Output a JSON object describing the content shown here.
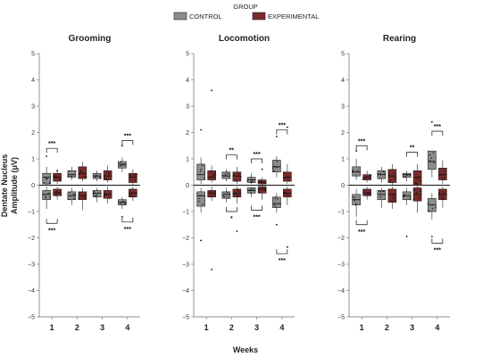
{
  "chart_data": {
    "type": "box",
    "legend": {
      "title": "GROUP",
      "placement": "top-center",
      "entries": [
        {
          "name": "CONTROL",
          "color": "#8c8c8c"
        },
        {
          "name": "EXPERIMENTAL",
          "color": "#7a2a2a"
        }
      ]
    },
    "xlabel": "Weeks",
    "ylabel_line1": "Dentate Nucleus",
    "ylabel_line2": "Amplitude (μV)",
    "ylim": [
      -5,
      5
    ],
    "yticks": [
      "5",
      "4",
      "3",
      "2",
      "1",
      "0",
      "−1",
      "−2",
      "−3",
      "−4",
      "−5"
    ],
    "ytick_values": [
      5,
      4,
      3,
      2,
      1,
      0,
      -1,
      -2,
      -3,
      -4,
      -5
    ],
    "categories": [
      "1",
      "2",
      "3",
      "4"
    ],
    "panels": [
      {
        "title": "Grooming",
        "pos": [
          [
            {
              "q1": 0.05,
              "med": 0.3,
              "q3": 0.45,
              "wl": 0.0,
              "wh": 0.7
            },
            {
              "q1": 0.15,
              "med": 0.3,
              "q3": 0.45,
              "wl": 0.05,
              "wh": 0.6
            }
          ],
          [
            {
              "q1": 0.3,
              "med": 0.4,
              "q3": 0.55,
              "wl": 0.2,
              "wh": 0.7
            },
            {
              "q1": 0.25,
              "med": 0.45,
              "q3": 0.7,
              "wl": 0.15,
              "wh": 0.9
            }
          ],
          [
            {
              "q1": 0.25,
              "med": 0.35,
              "q3": 0.45,
              "wl": 0.15,
              "wh": 0.55
            },
            {
              "q1": 0.2,
              "med": 0.35,
              "q3": 0.55,
              "wl": 0.1,
              "wh": 0.75
            }
          ],
          [
            {
              "q1": 0.65,
              "med": 0.8,
              "q3": 0.9,
              "wl": 0.5,
              "wh": 1.05
            },
            {
              "q1": 0.1,
              "med": 0.3,
              "q3": 0.45,
              "wl": 0.0,
              "wh": 0.6
            }
          ]
        ],
        "neg": [
          [
            {
              "q1": -0.55,
              "med": -0.35,
              "q3": -0.2,
              "wl": -0.9,
              "wh": -0.05
            },
            {
              "q1": -0.4,
              "med": -0.3,
              "q3": -0.15,
              "wl": -0.55,
              "wh": -0.05
            }
          ],
          [
            {
              "q1": -0.55,
              "med": -0.4,
              "q3": -0.25,
              "wl": -0.75,
              "wh": -0.1
            },
            {
              "q1": -0.55,
              "med": -0.4,
              "q3": -0.25,
              "wl": -0.95,
              "wh": -0.1
            }
          ],
          [
            {
              "q1": -0.45,
              "med": -0.3,
              "q3": -0.2,
              "wl": -0.65,
              "wh": -0.1
            },
            {
              "q1": -0.5,
              "med": -0.35,
              "q3": -0.2,
              "wl": -0.7,
              "wh": -0.05
            }
          ],
          [
            {
              "q1": -0.75,
              "med": -0.65,
              "q3": -0.55,
              "wl": -0.9,
              "wh": -0.45
            },
            {
              "q1": -0.45,
              "med": -0.3,
              "q3": -0.15,
              "wl": -0.6,
              "wh": -0.05
            }
          ]
        ],
        "outliers": [
          [
            1,
            0,
            1.1
          ],
          [
            4,
            0,
            1.5
          ],
          [
            4,
            0,
            -1.2
          ],
          [
            1,
            1,
            0.55
          ]
        ],
        "sig_pos": [
          {
            "week": 1,
            "label": "***",
            "y": 1.4
          },
          {
            "week": 4,
            "label": "***",
            "y": 1.7
          }
        ],
        "sig_neg": [
          {
            "week": 1,
            "label": "***",
            "y": -1.45
          },
          {
            "week": 4,
            "label": "***",
            "y": -1.4
          }
        ]
      },
      {
        "title": "Locomotion",
        "pos": [
          [
            {
              "q1": 0.2,
              "med": 0.4,
              "q3": 0.8,
              "wl": 0.05,
              "wh": 1.05
            },
            {
              "q1": 0.2,
              "med": 0.3,
              "q3": 0.55,
              "wl": 0.1,
              "wh": 0.75
            }
          ],
          [
            {
              "q1": 0.25,
              "med": 0.35,
              "q3": 0.5,
              "wl": 0.15,
              "wh": 0.6
            },
            {
              "q1": 0.15,
              "med": 0.35,
              "q3": 0.5,
              "wl": 0.05,
              "wh": 0.7
            }
          ],
          [
            {
              "q1": 0.1,
              "med": 0.2,
              "q3": 0.3,
              "wl": 0.05,
              "wh": 0.45
            },
            {
              "q1": 0.05,
              "med": 0.1,
              "q3": 0.2,
              "wl": 0.0,
              "wh": 0.3
            }
          ],
          [
            {
              "q1": 0.5,
              "med": 0.7,
              "q3": 0.95,
              "wl": 0.3,
              "wh": 1.1
            },
            {
              "q1": 0.15,
              "med": 0.3,
              "q3": 0.5,
              "wl": 0.05,
              "wh": 0.8
            }
          ]
        ],
        "neg": [
          [
            {
              "q1": -0.8,
              "med": -0.4,
              "q3": -0.25,
              "wl": -1.05,
              "wh": -0.1
            },
            {
              "q1": -0.45,
              "med": -0.3,
              "q3": -0.2,
              "wl": -0.6,
              "wh": -0.05
            }
          ],
          [
            {
              "q1": -0.5,
              "med": -0.35,
              "q3": -0.25,
              "wl": -0.65,
              "wh": -0.1
            },
            {
              "q1": -0.45,
              "med": -0.3,
              "q3": -0.15,
              "wl": -0.7,
              "wh": -0.05
            }
          ],
          [
            {
              "q1": -0.3,
              "med": -0.2,
              "q3": -0.1,
              "wl": -0.45,
              "wh": -0.05
            },
            {
              "q1": -0.3,
              "med": -0.15,
              "q3": -0.05,
              "wl": -0.55,
              "wh": 0.0
            }
          ],
          [
            {
              "q1": -0.85,
              "med": -0.7,
              "q3": -0.45,
              "wl": -1.05,
              "wh": -0.3
            },
            {
              "q1": -0.45,
              "med": -0.3,
              "q3": -0.15,
              "wl": -0.75,
              "wh": -0.05
            }
          ]
        ],
        "outliers": [
          [
            1,
            0,
            2.1
          ],
          [
            1,
            0,
            -2.1
          ],
          [
            1,
            1,
            3.6
          ],
          [
            1,
            1,
            -3.2
          ],
          [
            2,
            1,
            -1.75
          ],
          [
            4,
            0,
            1.85
          ],
          [
            4,
            0,
            -1.5
          ],
          [
            4,
            1,
            2.2
          ],
          [
            4,
            1,
            -2.35
          ],
          [
            3,
            1,
            0.6
          ]
        ],
        "sig_pos": [
          {
            "week": 2,
            "label": "**",
            "y": 1.15
          },
          {
            "week": 3,
            "label": "***",
            "y": 1.0
          },
          {
            "week": 4,
            "label": "***",
            "y": 2.1
          }
        ],
        "sig_neg": [
          {
            "week": 2,
            "label": "*",
            "y": -1.0
          },
          {
            "week": 3,
            "label": "***",
            "y": -0.95
          },
          {
            "week": 4,
            "label": "***",
            "y": -2.6
          }
        ]
      },
      {
        "title": "Rearing",
        "pos": [
          [
            {
              "q1": 0.35,
              "med": 0.5,
              "q3": 0.7,
              "wl": 0.2,
              "wh": 1.0
            },
            {
              "q1": 0.2,
              "med": 0.3,
              "q3": 0.4,
              "wl": 0.1,
              "wh": 0.55
            }
          ],
          [
            {
              "q1": 0.25,
              "med": 0.4,
              "q3": 0.55,
              "wl": 0.1,
              "wh": 0.7
            },
            {
              "q1": 0.1,
              "med": 0.35,
              "q3": 0.6,
              "wl": 0.0,
              "wh": 0.8
            }
          ],
          [
            {
              "q1": 0.3,
              "med": 0.4,
              "q3": 0.45,
              "wl": 0.15,
              "wh": 0.55
            },
            {
              "q1": 0.0,
              "med": 0.3,
              "q3": 0.55,
              "wl": -0.05,
              "wh": 0.8
            }
          ],
          [
            {
              "q1": 0.6,
              "med": 0.9,
              "q3": 1.3,
              "wl": 0.3,
              "wh": 1.3
            },
            {
              "q1": 0.2,
              "med": 0.4,
              "q3": 0.65,
              "wl": 0.05,
              "wh": 0.95
            }
          ]
        ],
        "neg": [
          [
            {
              "q1": -0.75,
              "med": -0.55,
              "q3": -0.35,
              "wl": -1.2,
              "wh": -0.15
            },
            {
              "q1": -0.4,
              "med": -0.3,
              "q3": -0.15,
              "wl": -0.55,
              "wh": -0.05
            }
          ],
          [
            {
              "q1": -0.55,
              "med": -0.35,
              "q3": -0.2,
              "wl": -0.85,
              "wh": -0.1
            },
            {
              "q1": -0.65,
              "med": -0.35,
              "q3": -0.15,
              "wl": -0.9,
              "wh": -0.05
            }
          ],
          [
            {
              "q1": -0.55,
              "med": -0.4,
              "q3": -0.25,
              "wl": -0.75,
              "wh": -0.1
            },
            {
              "q1": -0.6,
              "med": -0.35,
              "q3": -0.1,
              "wl": -1.05,
              "wh": -0.05
            }
          ],
          [
            {
              "q1": -1.0,
              "med": -0.75,
              "q3": -0.5,
              "wl": -1.3,
              "wh": -0.3
            },
            {
              "q1": -0.55,
              "med": -0.35,
              "q3": -0.15,
              "wl": -0.85,
              "wh": -0.05
            }
          ]
        ],
        "outliers": [
          [
            1,
            0,
            1.3
          ],
          [
            3,
            0,
            -1.95
          ],
          [
            4,
            0,
            2.4
          ],
          [
            4,
            0,
            -1.95
          ]
        ],
        "sig_pos": [
          {
            "week": 1,
            "label": "***",
            "y": 1.5
          },
          {
            "week": 3,
            "label": "**",
            "y": 1.25
          },
          {
            "week": 4,
            "label": "***",
            "y": 2.05
          }
        ],
        "sig_neg": [
          {
            "week": 1,
            "label": "***",
            "y": -1.5
          },
          {
            "week": 4,
            "label": "***",
            "y": -2.2
          }
        ]
      }
    ]
  }
}
